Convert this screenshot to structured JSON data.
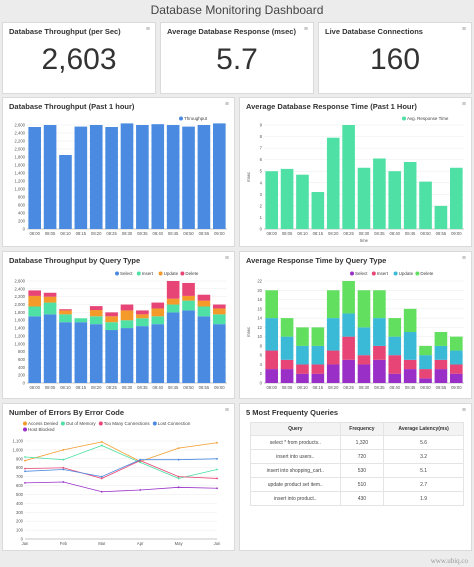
{
  "dashboard": {
    "title": "Database Monitoring Dashboard",
    "menu_glyph": "≡",
    "watermark": "www.ubiq.co"
  },
  "kpis": [
    {
      "title": "Database Throughput (per Sec)",
      "value": "2,603"
    },
    {
      "title": "Average Database Response (msec)",
      "value": "5.7"
    },
    {
      "title": "Live Database Connections",
      "value": "160"
    }
  ],
  "colors": {
    "blue": "#4a8ae0",
    "green": "#4fe0a5",
    "red": "#e64575",
    "orange": "#f39a2b",
    "purple": "#9a2fc8",
    "cyan": "#3bbad8",
    "lime": "#63df60"
  },
  "charts": {
    "throughput": {
      "title": "Database Throughput (Past 1 hour)",
      "chart_data": {
        "type": "bar",
        "categories": [
          "08:00",
          "08:05",
          "08:10",
          "08:15",
          "08:20",
          "08:25",
          "08:30",
          "08:35",
          "08:40",
          "08:45",
          "08:50",
          "08:55",
          "09:00"
        ],
        "series": [
          {
            "name": "Throughput",
            "values": [
              2550,
              2600,
              1850,
              2560,
              2600,
              2550,
              2640,
              2600,
              2620,
              2600,
              2560,
              2600,
              2640
            ]
          }
        ],
        "ylim": [
          0,
          2600
        ],
        "yticks": [
          "0",
          "200",
          "400",
          "600",
          "800",
          "1,000",
          "1,200",
          "1,400",
          "1,600",
          "1,800",
          "2,000",
          "2,200",
          "2,400",
          "2,600"
        ],
        "legend": "top-right"
      }
    },
    "response": {
      "title": "Average Database Response Time (Past 1 Hour)",
      "chart_data": {
        "type": "bar",
        "categories": [
          "08:00",
          "08:05",
          "08:10",
          "08:15",
          "08:20",
          "08:25",
          "08:30",
          "08:35",
          "08:40",
          "08:45",
          "08:50",
          "08:55",
          "09:00"
        ],
        "series": [
          {
            "name": "Avg. Response Time",
            "values": [
              5.0,
              5.2,
              4.7,
              3.2,
              7.9,
              9.0,
              5.3,
              6.1,
              5.0,
              5.8,
              4.1,
              2.0,
              5.3
            ]
          }
        ],
        "ylim": [
          0,
          9
        ],
        "yticks": [
          "0",
          "1",
          "2",
          "3",
          "4",
          "5",
          "6",
          "7",
          "8",
          "9"
        ],
        "ylabel": "msec",
        "xlabel": "time",
        "legend": "top-right"
      }
    },
    "throughput_by_type": {
      "title": "Database Throughput by Query Type",
      "chart_data": {
        "type": "bar",
        "stacked": true,
        "categories": [
          "08:00",
          "08:05",
          "08:10",
          "08:15",
          "08:20",
          "08:25",
          "08:30",
          "08:35",
          "08:40",
          "08:45",
          "08:50",
          "08:55",
          "09:00"
        ],
        "series": [
          {
            "name": "Select",
            "values": [
              1700,
              1750,
              1550,
              1550,
              1500,
              1350,
              1400,
              1450,
              1500,
              1800,
              1850,
              1700,
              1500
            ]
          },
          {
            "name": "Insert",
            "values": [
              250,
              300,
              200,
              100,
              200,
              200,
              200,
              200,
              200,
              200,
              250,
              250,
              250
            ]
          },
          {
            "name": "Update",
            "values": [
              270,
              150,
              100,
              0,
              160,
              150,
              250,
              100,
              200,
              150,
              120,
              150,
              150
            ]
          },
          {
            "name": "Delete",
            "values": [
              140,
              100,
              30,
              0,
              100,
              100,
              150,
              100,
              150,
              450,
              330,
              150,
              100
            ]
          }
        ],
        "ylim": [
          0,
          2600
        ],
        "yticks": [
          "0",
          "200",
          "400",
          "600",
          "800",
          "1,000",
          "1,200",
          "1,400",
          "1,600",
          "1,800",
          "2,000",
          "2,200",
          "2,400",
          "2,600"
        ],
        "legend": "top"
      }
    },
    "response_by_type": {
      "title": "Average Response Time by Query Type",
      "chart_data": {
        "type": "bar",
        "stacked": true,
        "categories": [
          "08:00",
          "08:05",
          "08:10",
          "08:15",
          "08:20",
          "08:25",
          "08:30",
          "08:35",
          "08:40",
          "08:45",
          "08:50",
          "08:55",
          "09:00"
        ],
        "series": [
          {
            "name": "Select",
            "values": [
              3,
              3,
              2,
              2,
              4,
              5,
              4,
              5,
              2,
              3,
              1,
              3,
              2
            ]
          },
          {
            "name": "Insert",
            "values": [
              4,
              2,
              2,
              2,
              3,
              5,
              2,
              3,
              4,
              2,
              2,
              2,
              2
            ]
          },
          {
            "name": "Update",
            "values": [
              7,
              5,
              4,
              4,
              7,
              5,
              6,
              6,
              4,
              6,
              3,
              3,
              3
            ]
          },
          {
            "name": "Delete",
            "values": [
              6,
              4,
              4,
              4,
              6,
              7,
              8,
              6,
              4,
              5,
              2,
              3,
              3
            ]
          }
        ],
        "ylim": [
          0,
          22
        ],
        "yticks": [
          "0",
          "2",
          "4",
          "6",
          "8",
          "10",
          "12",
          "14",
          "16",
          "18",
          "20",
          "22"
        ],
        "ylabel": "msec",
        "legend": "top"
      }
    },
    "errors": {
      "title": "Number of Errors By Error Code",
      "chart_data": {
        "type": "line",
        "categories": [
          "Jan",
          "Feb",
          "Mar",
          "Apr",
          "May",
          "Jun"
        ],
        "series": [
          {
            "name": "Access Denied",
            "values": [
              880,
              1000,
              1090,
              870,
              1020,
              1080
            ]
          },
          {
            "name": "Out of Memory",
            "values": [
              920,
              890,
              1050,
              860,
              680,
              780
            ]
          },
          {
            "name": "Too Many Connections",
            "values": [
              790,
              800,
              680,
              880,
              700,
              680
            ]
          },
          {
            "name": "Lost Connection",
            "values": [
              760,
              780,
              700,
              890,
              890,
              900
            ]
          },
          {
            "name": "Host Blocked",
            "values": [
              630,
              640,
              530,
              550,
              580,
              570
            ]
          }
        ],
        "ylim": [
          0,
          1100
        ],
        "yticks": [
          "0",
          "100",
          "200",
          "300",
          "400",
          "500",
          "600",
          "700",
          "800",
          "900",
          "1,000",
          "1,100"
        ],
        "legend": "top"
      }
    }
  },
  "queries": {
    "title": "5 Most Frequenty Queries",
    "headers": [
      "Query",
      "Frequency",
      "Average Latency(ms)"
    ],
    "rows": [
      [
        "select * from products..",
        "1,320",
        "5.6"
      ],
      [
        "insert into users..",
        "720",
        "3.2"
      ],
      [
        "insert into shopping_cart..",
        "530",
        "5.1"
      ],
      [
        "update product set item..",
        "510",
        "2.7"
      ],
      [
        "insert into product..",
        "430",
        "1.9"
      ]
    ]
  }
}
